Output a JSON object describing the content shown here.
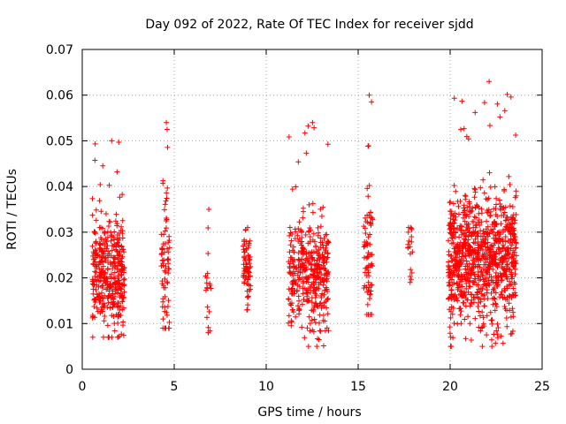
{
  "chart_data": {
    "type": "scatter",
    "title": "Day 092 of 2022, Rate Of TEC Index for receiver sjdd",
    "xlabel": "GPS time / hours",
    "ylabel": "ROTI / TECUs",
    "xlim": [
      0,
      25
    ],
    "ylim": [
      0,
      0.07
    ],
    "x_ticks": [
      "0",
      "5",
      "10",
      "15",
      "20",
      "25"
    ],
    "y_ticks": [
      "0",
      "0.01",
      "0.02",
      "0.03",
      "0.04",
      "0.05",
      "0.06",
      "0.07"
    ],
    "grid": true,
    "marker": "+",
    "color": "#ff0000",
    "clusters": [
      {
        "x_range": [
          0.55,
          2.3
        ],
        "y_center": 0.021,
        "y_spread": 0.006,
        "y_min": 0.007,
        "y_max": 0.05,
        "density": "high"
      },
      {
        "x_range": [
          4.3,
          4.75
        ],
        "y_center": 0.022,
        "y_spread": 0.008,
        "y_min": 0.009,
        "y_max": 0.054,
        "density": "medium"
      },
      {
        "x_range": [
          6.7,
          7.0
        ],
        "y_center": 0.018,
        "y_spread": 0.006,
        "y_min": 0.008,
        "y_max": 0.035,
        "density": "low"
      },
      {
        "x_range": [
          8.75,
          9.15
        ],
        "y_center": 0.022,
        "y_spread": 0.004,
        "y_min": 0.013,
        "y_max": 0.031,
        "density": "medium"
      },
      {
        "x_range": [
          11.2,
          13.4
        ],
        "y_center": 0.021,
        "y_spread": 0.006,
        "y_min": 0.005,
        "y_max": 0.054,
        "density": "high"
      },
      {
        "x_range": [
          15.3,
          15.8
        ],
        "y_center": 0.025,
        "y_spread": 0.007,
        "y_min": 0.012,
        "y_max": 0.06,
        "density": "medium"
      },
      {
        "x_range": [
          17.7,
          17.95
        ],
        "y_center": 0.025,
        "y_spread": 0.004,
        "y_min": 0.019,
        "y_max": 0.031,
        "density": "low"
      },
      {
        "x_range": [
          19.9,
          23.6
        ],
        "y_center": 0.024,
        "y_spread": 0.007,
        "y_min": 0.005,
        "y_max": 0.063,
        "density": "very-high"
      }
    ]
  }
}
